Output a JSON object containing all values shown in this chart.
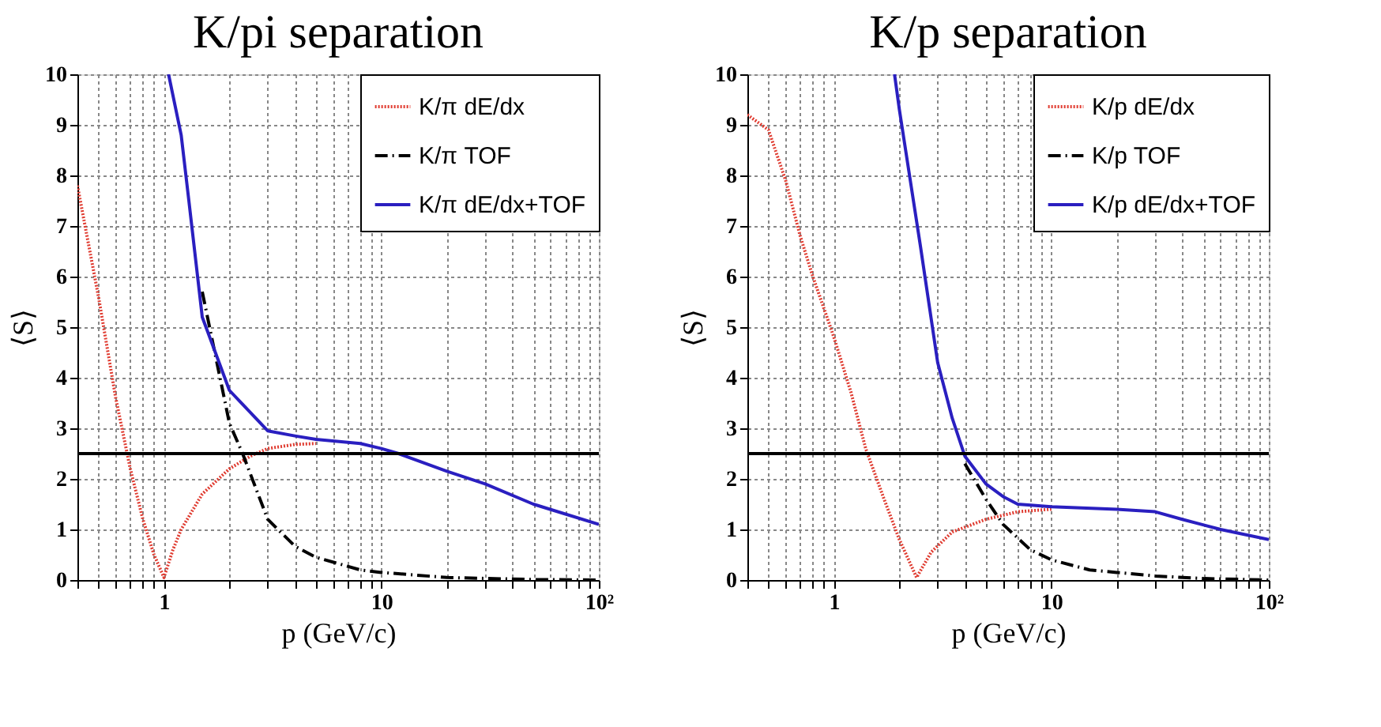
{
  "chart_data": [
    {
      "type": "line",
      "title": "K/pi separation",
      "xlabel": "p (GeV/c)",
      "ylabel": "⟨S⟩",
      "log": "x",
      "grid": true,
      "legend": "top right",
      "xlim": [
        0.4,
        100
      ],
      "ylim": [
        0,
        10
      ],
      "xticks": [
        {
          "value": 0.4,
          "label": null
        },
        {
          "value": 0.5,
          "label": null
        },
        {
          "value": 0.6,
          "label": null
        },
        {
          "value": 0.7,
          "label": null
        },
        {
          "value": 0.8,
          "label": null
        },
        {
          "value": 0.9,
          "label": null
        },
        1,
        {
          "value": 2,
          "label": null
        },
        {
          "value": 3,
          "label": null
        },
        {
          "value": 4,
          "label": null
        },
        {
          "value": 5,
          "label": null
        },
        {
          "value": 6,
          "label": null
        },
        {
          "value": 7,
          "label": null
        },
        {
          "value": 8,
          "label": null
        },
        {
          "value": 9,
          "label": null
        },
        10,
        {
          "value": 20,
          "label": null
        },
        {
          "value": 30,
          "label": null
        },
        {
          "value": 40,
          "label": null
        },
        {
          "value": 50,
          "label": null
        },
        {
          "value": 60,
          "label": null
        },
        {
          "value": 70,
          "label": null
        },
        {
          "value": 80,
          "label": null
        },
        {
          "value": 90,
          "label": null
        },
        {
          "value": 100,
          "label": "10²"
        }
      ],
      "yticks": [
        0,
        1,
        2,
        3,
        4,
        5,
        6,
        7,
        8,
        9,
        10
      ],
      "ref_lines": [
        {
          "axis": "y",
          "value": 2.5,
          "color": "#000000"
        }
      ],
      "series": [
        {
          "name": "K/π dE/dx",
          "color": "#e03c31",
          "line_style": "dotted",
          "x": [
            0.4,
            0.5,
            0.6,
            0.7,
            0.8,
            0.9,
            1.0,
            1.1,
            1.2,
            1.5,
            2,
            2.5,
            3,
            4,
            5
          ],
          "values": [
            7.8,
            5.6,
            3.6,
            2.2,
            1.2,
            0.5,
            0.05,
            0.6,
            1.0,
            1.7,
            2.2,
            2.45,
            2.6,
            2.68,
            2.7
          ]
        },
        {
          "name": "K/π TOF",
          "color": "#000000",
          "line_style": "dashed",
          "x": [
            1.5,
            2,
            2.3,
            3,
            4,
            5,
            8,
            10,
            20,
            50,
            100
          ],
          "values": [
            5.7,
            3.1,
            2.5,
            1.2,
            0.67,
            0.45,
            0.2,
            0.15,
            0.05,
            0.01,
            0
          ]
        },
        {
          "name": "K/π dE/dx+TOF",
          "color": "#2a1fc0",
          "line_style": "solid",
          "x": [
            1.05,
            1.2,
            1.31,
            1.5,
            2,
            3,
            4,
            5,
            8,
            10,
            12,
            20,
            30,
            50,
            100
          ],
          "values": [
            10,
            8.8,
            7.4,
            5.2,
            3.75,
            2.95,
            2.85,
            2.78,
            2.7,
            2.6,
            2.5,
            2.15,
            1.9,
            1.5,
            1.1
          ]
        }
      ]
    },
    {
      "type": "line",
      "title": "K/p separation",
      "xlabel": "p (GeV/c)",
      "ylabel": "⟨S⟩",
      "log": "x",
      "grid": true,
      "legend": "top right",
      "xlim": [
        0.4,
        100
      ],
      "ylim": [
        0,
        10
      ],
      "xticks": [
        {
          "value": 0.4,
          "label": null
        },
        {
          "value": 0.5,
          "label": null
        },
        {
          "value": 0.6,
          "label": null
        },
        {
          "value": 0.7,
          "label": null
        },
        {
          "value": 0.8,
          "label": null
        },
        {
          "value": 0.9,
          "label": null
        },
        1,
        {
          "value": 2,
          "label": null
        },
        {
          "value": 3,
          "label": null
        },
        {
          "value": 4,
          "label": null
        },
        {
          "value": 5,
          "label": null
        },
        {
          "value": 6,
          "label": null
        },
        {
          "value": 7,
          "label": null
        },
        {
          "value": 8,
          "label": null
        },
        {
          "value": 9,
          "label": null
        },
        10,
        {
          "value": 20,
          "label": null
        },
        {
          "value": 30,
          "label": null
        },
        {
          "value": 40,
          "label": null
        },
        {
          "value": 50,
          "label": null
        },
        {
          "value": 60,
          "label": null
        },
        {
          "value": 70,
          "label": null
        },
        {
          "value": 80,
          "label": null
        },
        {
          "value": 90,
          "label": null
        },
        {
          "value": 100,
          "label": "10²"
        }
      ],
      "yticks": [
        0,
        1,
        2,
        3,
        4,
        5,
        6,
        7,
        8,
        9,
        10
      ],
      "ref_lines": [
        {
          "axis": "y",
          "value": 2.5,
          "color": "#000000"
        }
      ],
      "series": [
        {
          "name": "K/p dE/dx",
          "color": "#e03c31",
          "line_style": "dotted",
          "x": [
            0.4,
            0.5,
            0.6,
            0.7,
            0.8,
            1.0,
            1.2,
            1.4,
            1.7,
            2,
            2.4,
            2.8,
            3.5,
            5,
            7,
            10
          ],
          "values": [
            9.2,
            8.9,
            7.9,
            6.8,
            6.0,
            4.8,
            3.7,
            2.6,
            1.6,
            0.8,
            0.05,
            0.55,
            0.95,
            1.2,
            1.35,
            1.4
          ]
        },
        {
          "name": "K/p TOF",
          "color": "#000000",
          "line_style": "dashed",
          "x": [
            4,
            5,
            6,
            8,
            10,
            15,
            20,
            30,
            50,
            100
          ],
          "values": [
            2.3,
            1.6,
            1.1,
            0.6,
            0.4,
            0.2,
            0.15,
            0.08,
            0.03,
            0
          ]
        },
        {
          "name": "K/p dE/dx+TOF",
          "color": "#2a1fc0",
          "line_style": "solid",
          "x": [
            1.9,
            2,
            2.5,
            3,
            3.5,
            4,
            5,
            6,
            7,
            10,
            20,
            30,
            40,
            60,
            100
          ],
          "values": [
            10,
            9.3,
            6.6,
            4.3,
            3.2,
            2.45,
            1.9,
            1.65,
            1.5,
            1.45,
            1.4,
            1.35,
            1.2,
            1.0,
            0.8
          ]
        }
      ]
    }
  ]
}
